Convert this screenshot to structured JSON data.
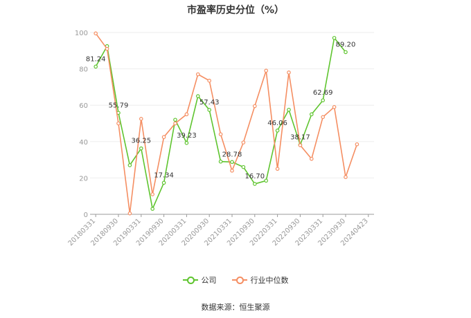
{
  "title": "市盈率历史分位（%）",
  "source": "数据来源：恒生聚源",
  "colors": {
    "company": "#5ec42e",
    "industry": "#f58e62",
    "grid": "#eeeeee",
    "axis": "#999999",
    "text": "#333333"
  },
  "chart_data": {
    "type": "line",
    "title": "市盈率历史分位（%）",
    "xlabel": "",
    "ylabel": "",
    "ylim": [
      0,
      100
    ],
    "yticks": [
      0,
      20,
      40,
      60,
      80,
      100
    ],
    "grid": true,
    "legend": "bottom-center",
    "x_labels": [
      "20180331",
      "20180930",
      "20190331",
      "20190930",
      "20200331",
      "20200930",
      "20210331",
      "20210930",
      "20220331",
      "20220930",
      "20230331",
      "20230930",
      "20240423"
    ],
    "x": [
      "20180331",
      "",
      "20180930",
      "",
      "20190331",
      "",
      "20190930",
      "",
      "20200331",
      "",
      "20200930",
      "",
      "20210331",
      "",
      "20210930",
      "",
      "20220331",
      "",
      "20220930",
      "",
      "20230331",
      "",
      "20230930",
      "",
      "20240423"
    ],
    "series": [
      {
        "name": "公司",
        "color": "#5ec42e",
        "values": [
          81.24,
          92.5,
          55.79,
          27,
          36.25,
          3,
          17.34,
          52,
          39.23,
          65,
          57.43,
          29,
          28.78,
          26,
          16.7,
          18.5,
          46.06,
          57.5,
          38.17,
          55,
          62.69,
          97,
          89.2,
          null,
          null
        ],
        "labels": {
          "0": "81.24",
          "2": "55.79",
          "4": "36.25",
          "6": "17.34",
          "8": "39.23",
          "10": "57.43",
          "12": "28.78",
          "14": "16.70",
          "16": "46.06",
          "18": "38.17",
          "20": "62.69",
          "22": "89.20"
        }
      },
      {
        "name": "行业中位数",
        "color": "#f58e62",
        "values": [
          99.5,
          91,
          50,
          0.5,
          52.5,
          11,
          42.5,
          50,
          55,
          77,
          73.5,
          44,
          24,
          39.5,
          59.5,
          79,
          25,
          78,
          38,
          30.5,
          53.5,
          59,
          20.5,
          38.5,
          null
        ]
      }
    ]
  }
}
